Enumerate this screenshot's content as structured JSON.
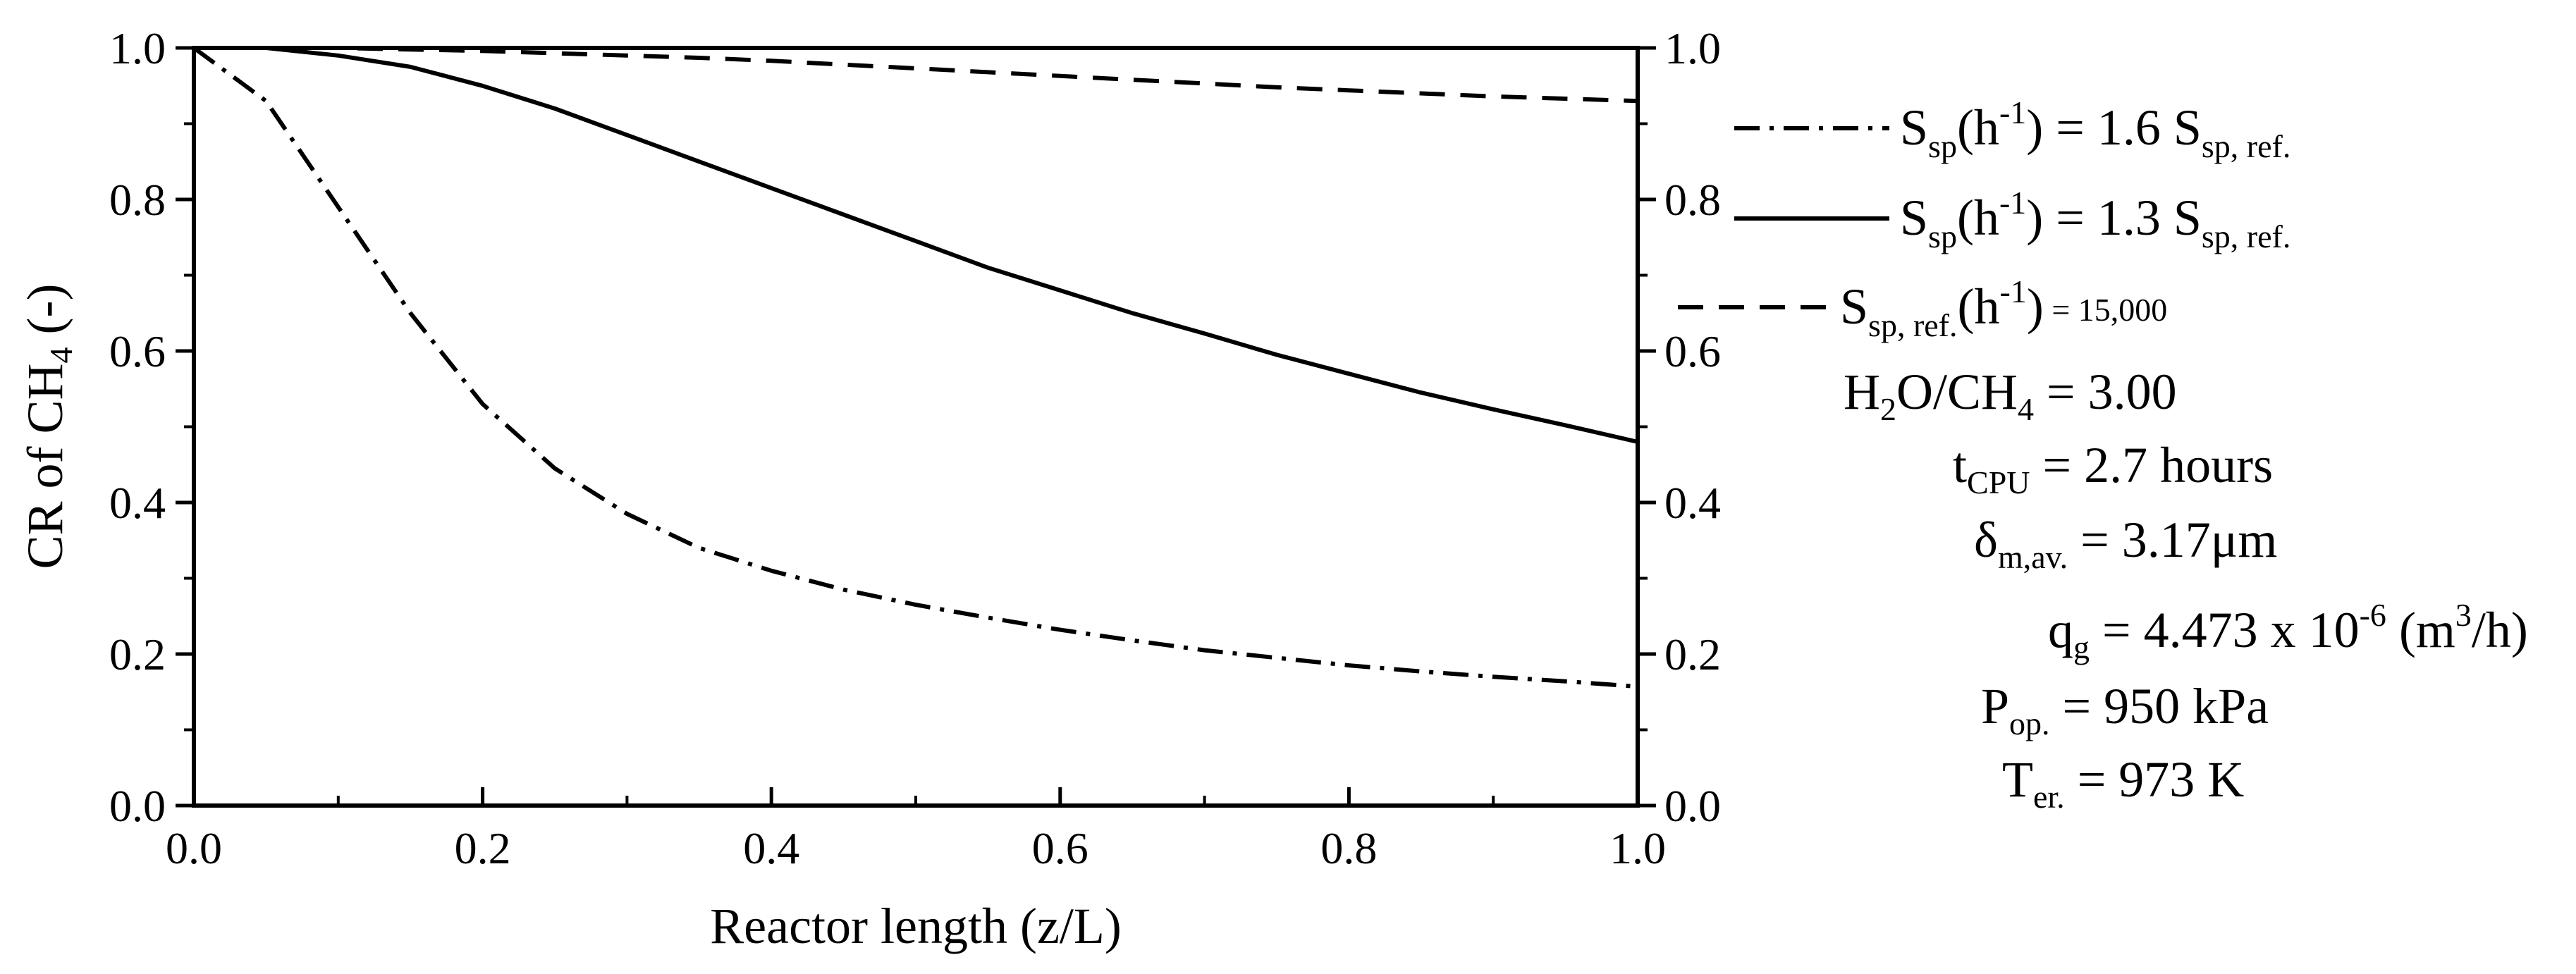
{
  "chart_data": {
    "type": "line",
    "title": "",
    "xlabel": "Reactor length (z/L)",
    "ylabel_parts": {
      "main": "CR of CH",
      "sub": "4",
      "tail": " (-)"
    },
    "xlim": [
      0.0,
      1.0
    ],
    "ylim": [
      0.0,
      1.0
    ],
    "x_ticks": [
      "0.0",
      "0.2",
      "0.4",
      "0.6",
      "0.8",
      "1.0"
    ],
    "y_ticks": [
      "0.0",
      "0.2",
      "0.4",
      "0.6",
      "0.8",
      "1.0"
    ],
    "y2_ticks": [
      "0.0",
      "0.2",
      "0.4",
      "0.6",
      "0.8",
      "1.0"
    ],
    "x": [
      0.0,
      0.05,
      0.1,
      0.15,
      0.2,
      0.25,
      0.3,
      0.35,
      0.4,
      0.45,
      0.5,
      0.55,
      0.6,
      0.65,
      0.7,
      0.75,
      0.8,
      0.85,
      0.9,
      0.95,
      1.0
    ],
    "series": [
      {
        "name": "S_sp(h^-1) = 1.6 S_sp,ref.",
        "style": "dashdot",
        "values": [
          1.0,
          0.93,
          0.79,
          0.65,
          0.53,
          0.445,
          0.385,
          0.34,
          0.31,
          0.285,
          0.265,
          0.248,
          0.232,
          0.218,
          0.205,
          0.195,
          0.185,
          0.177,
          0.17,
          0.164,
          0.157
        ]
      },
      {
        "name": "S_sp(h^-1) = 1.3 S_sp,ref.",
        "style": "solid",
        "values": [
          1.0,
          1.0,
          0.99,
          0.975,
          0.95,
          0.92,
          0.885,
          0.85,
          0.815,
          0.78,
          0.745,
          0.71,
          0.68,
          0.65,
          0.623,
          0.595,
          0.57,
          0.545,
          0.523,
          0.502,
          0.48
        ]
      },
      {
        "name": "S_sp,ref.(h^-1) = 15,000",
        "style": "dashed",
        "values": [
          1.0,
          1.0,
          1.0,
          0.998,
          0.996,
          0.993,
          0.99,
          0.987,
          0.983,
          0.978,
          0.973,
          0.968,
          0.963,
          0.958,
          0.953,
          0.948,
          0.944,
          0.94,
          0.936,
          0.933,
          0.93
        ]
      }
    ],
    "legend": {
      "placement": "right",
      "entries": [
        {
          "main": "S",
          "sub1": "sp",
          "mid": "(h",
          "sup": "-1",
          "mid2": ") = 1.6 S",
          "sub2": "sp, ref."
        },
        {
          "main": "S",
          "sub1": "sp",
          "mid": "(h",
          "sup": "-1",
          "mid2": ") = 1.3 S",
          "sub2": "sp, ref."
        },
        {
          "main": "S",
          "sub1": "sp, ref.",
          "mid": "(h",
          "sup": "-1",
          "mid2": ")",
          "tail": " = 15,000"
        }
      ]
    },
    "annotations": [
      {
        "main": "H",
        "sub": "2",
        "rest": "O/CH",
        "sub2": "4",
        "tail": " = 3.00"
      },
      {
        "main": "t",
        "sub": "CPU",
        "tail": " = 2.7 hours"
      },
      {
        "main": "δ",
        "sub": "m,av.",
        "tail": " = 3.17μm"
      },
      {
        "main": "q",
        "sub": "g",
        "tail": " = 4.473 x 10",
        "sup": "-6",
        "tail2": " (m",
        "sup2": "3",
        "tail3": "/h)"
      },
      {
        "main": "P",
        "sub": "op.",
        "tail": " = 950 kPa"
      },
      {
        "main": "T",
        "sub": "er.",
        "tail": " = 973 K"
      }
    ]
  }
}
